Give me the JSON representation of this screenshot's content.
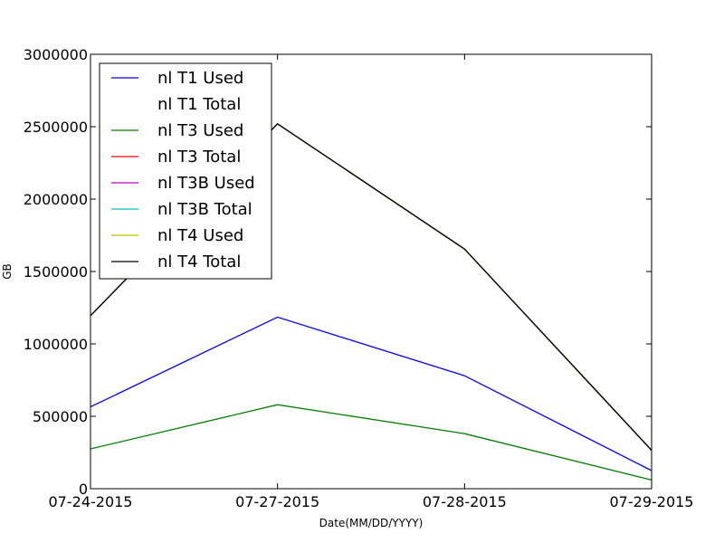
{
  "chart_data": {
    "type": "line",
    "title": "",
    "xlabel": "Date(MM/DD/YYYY)",
    "ylabel": "GB",
    "categories": [
      "07-24-2015",
      "07-27-2015",
      "07-28-2015",
      "07-29-2015"
    ],
    "ylim": [
      0,
      3000000
    ],
    "yticks": [
      0,
      500000,
      1000000,
      1500000,
      2000000,
      2500000,
      3000000
    ],
    "ytick_labels": [
      "0",
      "500000",
      "1000000",
      "1500000",
      "2000000",
      "2500000",
      "3000000"
    ],
    "grid": false,
    "legend_position": "top-left",
    "series": [
      {
        "name": "nl T1 Used",
        "color": "#0000ff",
        "values": [
          565000,
          1185000,
          780000,
          125000
        ]
      },
      {
        "name": "nl T1 Total",
        "color": "#ffffff",
        "values": [
          1195000,
          2520000,
          1655000,
          265000
        ]
      },
      {
        "name": "nl T3 Used",
        "color": "#008000",
        "values": [
          275000,
          580000,
          380000,
          60000
        ]
      },
      {
        "name": "nl T3 Total",
        "color": "#ff0000",
        "values": [
          1195000,
          2520000,
          1655000,
          265000
        ]
      },
      {
        "name": "nl T3B Used",
        "color": "#bf00bf",
        "values": [
          1195000,
          2520000,
          1655000,
          265000
        ]
      },
      {
        "name": "nl T3B Total",
        "color": "#00bfbf",
        "values": [
          1195000,
          2520000,
          1655000,
          265000
        ]
      },
      {
        "name": "nl T4 Used",
        "color": "#bfbf00",
        "values": [
          1195000,
          2520000,
          1655000,
          265000
        ]
      },
      {
        "name": "nl T4 Total",
        "color": "#000000",
        "values": [
          1195000,
          2520000,
          1655000,
          265000
        ]
      }
    ]
  }
}
